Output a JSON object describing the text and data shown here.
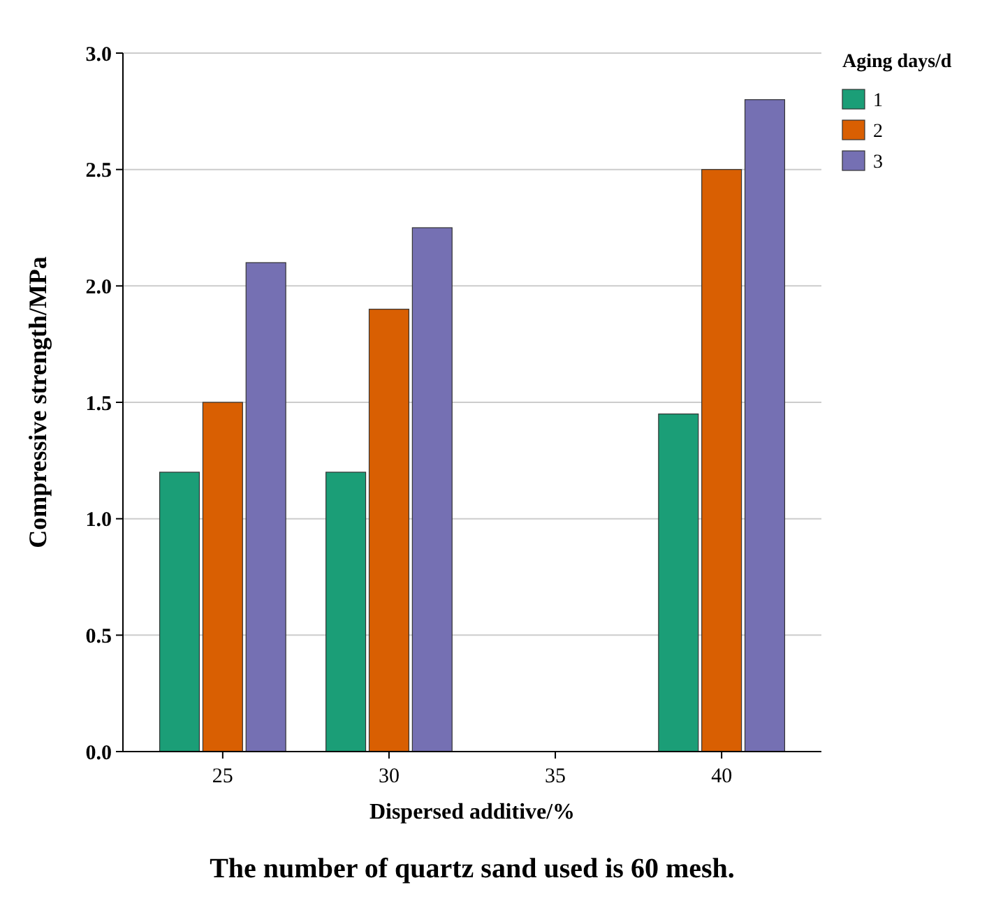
{
  "chart_data": {
    "type": "bar",
    "title": "The number of quartz sand used is 60 mesh.",
    "xlabel": "Dispersed additive/%",
    "ylabel": "Compressive strength/MPa",
    "legend_title": "Aging days/d",
    "categories": [
      "25",
      "30",
      "35",
      "40"
    ],
    "series": [
      {
        "name": "1",
        "color": "#1b9e77",
        "values": [
          1.2,
          1.2,
          null,
          1.45
        ]
      },
      {
        "name": "2",
        "color": "#d95f02",
        "values": [
          1.5,
          1.9,
          null,
          2.5
        ]
      },
      {
        "name": "3",
        "color": "#7570b3",
        "values": [
          2.1,
          2.25,
          null,
          2.8
        ]
      }
    ],
    "ylim": [
      0,
      3
    ],
    "yticks": [
      {
        "value": 0,
        "label": "0.0"
      },
      0.5,
      {
        "value": 1,
        "label": "1.0"
      },
      1.5,
      {
        "value": 2,
        "label": "2.0"
      },
      2.5,
      {
        "value": 3,
        "label": "3.0"
      }
    ],
    "grid": "y",
    "legend": "right"
  }
}
